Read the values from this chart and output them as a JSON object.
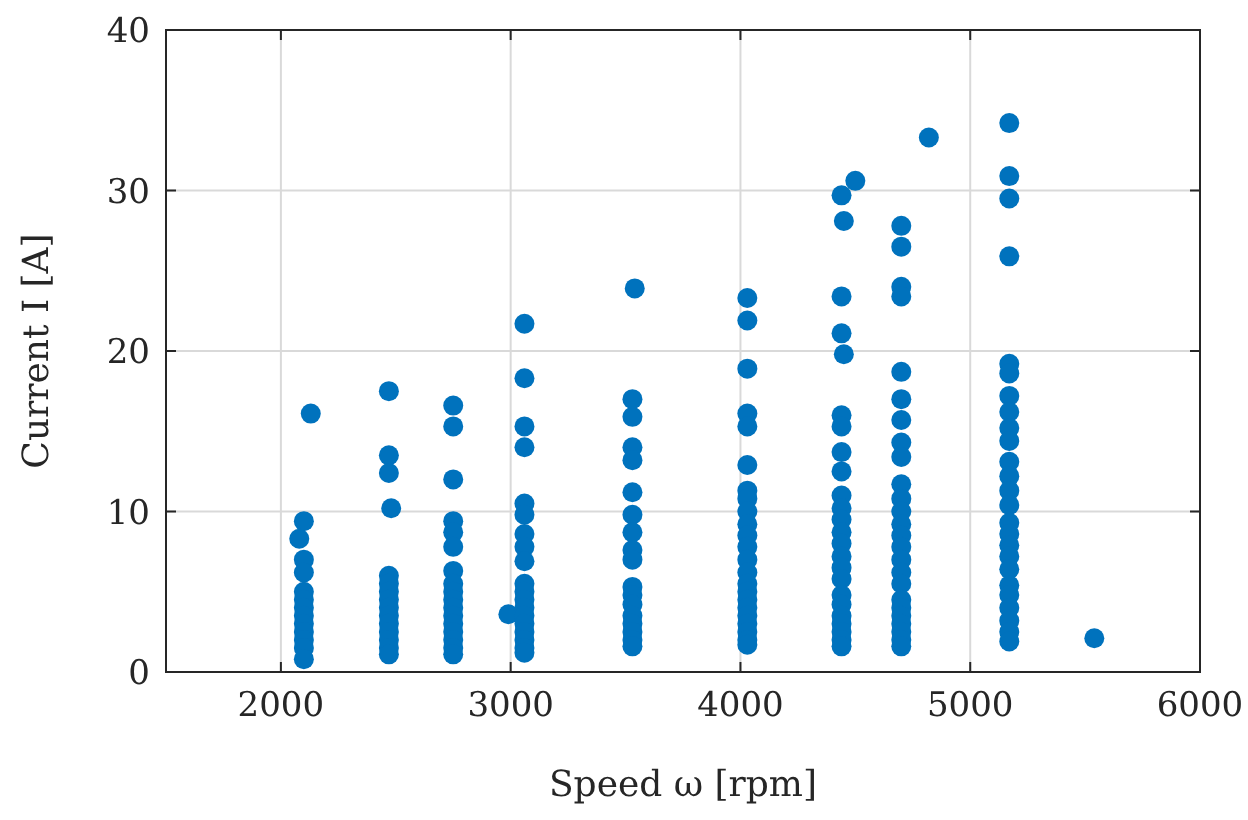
{
  "chart_data": {
    "type": "scatter",
    "xlabel": "Speed ω [rpm]",
    "ylabel": "Current I [A]",
    "xlim": [
      1500,
      6000
    ],
    "ylim": [
      0,
      40
    ],
    "xticks": [
      2000,
      3000,
      4000,
      5000,
      6000
    ],
    "yticks": [
      0,
      10,
      20,
      30,
      40
    ],
    "grid": true,
    "marker": "circle",
    "series": [
      {
        "color": "#0072bd",
        "x": [
          2100,
          2080,
          2100,
          2100,
          2100,
          2100,
          2100,
          2100,
          2100,
          2100,
          2100,
          2100,
          2100,
          2130,
          2470,
          2470,
          2470,
          2480,
          2470,
          2470,
          2470,
          2470,
          2470,
          2470,
          2470,
          2470,
          2470,
          2470,
          2470,
          2750,
          2750,
          2750,
          2750,
          2750,
          2750,
          2750,
          2750,
          2750,
          2750,
          2750,
          2750,
          2750,
          2750,
          2750,
          2750,
          2750,
          2990,
          3060,
          3060,
          3060,
          3060,
          3060,
          3060,
          3060,
          3060,
          3060,
          3060,
          3060,
          3060,
          3060,
          3060,
          3060,
          3060,
          3060,
          3060,
          3060,
          3540,
          3530,
          3530,
          3530,
          3530,
          3530,
          3530,
          3530,
          3530,
          3530,
          3530,
          3530,
          3530,
          3530,
          3530,
          3530,
          3530,
          3530,
          4030,
          4030,
          4030,
          4030,
          4030,
          4030,
          4030,
          4030,
          4030,
          4030,
          4030,
          4030,
          4030,
          4030,
          4030,
          4030,
          4030,
          4030,
          4030,
          4030,
          4030,
          4030,
          4030,
          4440,
          4450,
          4440,
          4440,
          4450,
          4440,
          4440,
          4440,
          4440,
          4440,
          4440,
          4440,
          4440,
          4440,
          4440,
          4440,
          4440,
          4440,
          4440,
          4440,
          4440,
          4440,
          4440,
          4440,
          4500,
          4700,
          4700,
          4700,
          4700,
          4700,
          4700,
          4700,
          4700,
          4700,
          4700,
          4700,
          4700,
          4700,
          4700,
          4700,
          4700,
          4700,
          4700,
          4700,
          4700,
          4700,
          4700,
          4700,
          4700,
          4700,
          4820,
          5170,
          5170,
          5170,
          5170,
          5170,
          5170,
          5170,
          5170,
          5170,
          5170,
          5170,
          5170,
          5170,
          5170,
          5170,
          5170,
          5170,
          5170,
          5170,
          5170,
          5170,
          5170,
          5170,
          5170,
          5170,
          5540
        ],
        "values": [
          9.4,
          8.3,
          7.0,
          6.2,
          5,
          4.5,
          4,
          3.5,
          3,
          2.5,
          2,
          1.5,
          0.8,
          16.1,
          17.5,
          13.5,
          12.4,
          10.2,
          6,
          5.5,
          5,
          4.5,
          4,
          3.5,
          3,
          2.5,
          2,
          1.5,
          1.1,
          16.6,
          15.3,
          12.0,
          9.4,
          8.7,
          7.8,
          6.3,
          5.5,
          5,
          4.5,
          4,
          3.5,
          3,
          2.5,
          2,
          1.5,
          1.1,
          3.6,
          21.7,
          18.3,
          15.3,
          14.0,
          10.5,
          9.8,
          8.6,
          7.8,
          6.9,
          5.5,
          5,
          4.5,
          4,
          3.5,
          3,
          2.5,
          2,
          1.5,
          1.2,
          23.9,
          17.0,
          15.9,
          14.0,
          13.2,
          11.2,
          9.8,
          8.7,
          7.6,
          7.0,
          5.3,
          4.8,
          4.2,
          3.5,
          3,
          2.5,
          2,
          1.6,
          23.3,
          21.9,
          18.9,
          16.1,
          15.3,
          12.9,
          11.3,
          10.8,
          10,
          9.2,
          8.5,
          7.8,
          7,
          6.2,
          5.5,
          5,
          4.5,
          4,
          3.5,
          3,
          2.5,
          2,
          1.7,
          29.7,
          28.1,
          23.4,
          21.1,
          19.8,
          16.0,
          15.3,
          13.7,
          12.5,
          11.0,
          10.2,
          9.5,
          8.7,
          8.0,
          7.2,
          6.5,
          5.8,
          4.8,
          4.2,
          3.5,
          3,
          2.5,
          2,
          1.6,
          30.6,
          27.8,
          26.5,
          24.0,
          23.4,
          18.7,
          17.0,
          15.7,
          14.3,
          13.4,
          11.7,
          10.8,
          10,
          9.2,
          8.5,
          7.8,
          7,
          6.2,
          5.5,
          4.5,
          4,
          3.5,
          3,
          2.5,
          2,
          1.6,
          33.3,
          34.2,
          30.9,
          29.5,
          25.9,
          19.2,
          18.6,
          17.2,
          16.2,
          15.2,
          14.4,
          13.1,
          12.2,
          11.3,
          10.4,
          9.3,
          8.6,
          7.9,
          7.2,
          6.4,
          5.4,
          4.8,
          4.0,
          3.2,
          2.5,
          1.9,
          2.1
        ]
      }
    ]
  }
}
